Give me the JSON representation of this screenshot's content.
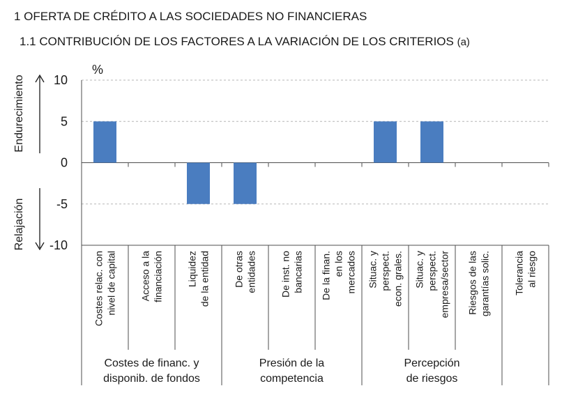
{
  "header": {
    "title": "1  OFERTA DE CRÉDITO A LAS SOCIEDADES NO FINANCIERAS",
    "subtitle": "1.1  CONTRIBUCIÓN DE LOS FACTORES A LA VARIACIÓN DE LOS CRITERIOS",
    "subtitle_suffix": "(a)"
  },
  "chart_data": {
    "type": "bar",
    "ylabel": "%",
    "ylim": [
      -10,
      10
    ],
    "yticks": [
      10,
      5,
      0,
      -5,
      -10
    ],
    "ytick_labels": [
      "10",
      "5",
      "0",
      "-5",
      "-10"
    ],
    "side_labels": {
      "up": "Endurecimiento",
      "down": "Relajación"
    },
    "bar_color": "#4a7dc0",
    "grid": "dashed horizontal",
    "categories": [
      [
        "Costes relac. con",
        "nivel de capital"
      ],
      [
        "Acceso a la",
        "financiación"
      ],
      [
        "Liquidez",
        "de la entidad"
      ],
      [
        "De otras",
        "entidades"
      ],
      [
        "De inst. no",
        "bancarias"
      ],
      [
        "De la finan.",
        "en los",
        "mercados"
      ],
      [
        "Situac. y",
        "perspect.",
        "econ. grales."
      ],
      [
        "Situac. y",
        "perspect.",
        "empresa/sector"
      ],
      [
        "Riesgos de las",
        "garantías solic."
      ],
      [
        "Tolerancia",
        "al riesgo"
      ]
    ],
    "values": [
      5,
      0,
      -5,
      -5,
      0,
      0,
      5,
      5,
      0,
      0
    ],
    "groups": [
      {
        "label": [
          "Costes de financ. y",
          "disponib. de fondos"
        ],
        "start": 0,
        "end": 2
      },
      {
        "label": [
          "Presión de la",
          "competencia"
        ],
        "start": 3,
        "end": 5
      },
      {
        "label": [
          "Percepción",
          "de riesgos"
        ],
        "start": 6,
        "end": 8
      },
      {
        "label": [],
        "start": 9,
        "end": 9
      }
    ]
  }
}
